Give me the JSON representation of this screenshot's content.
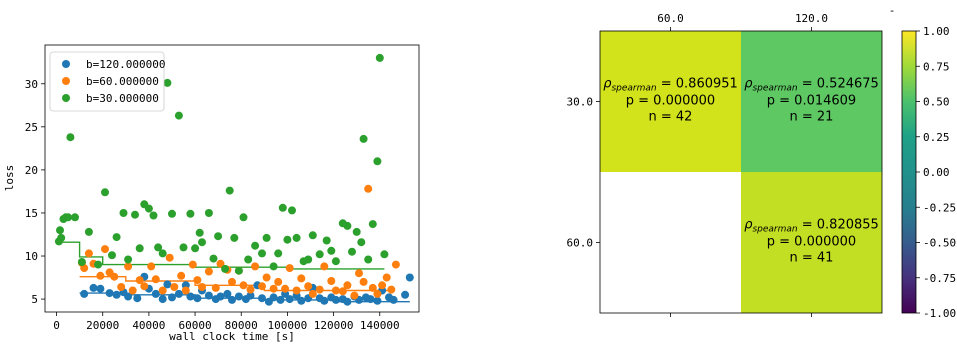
{
  "chart_data": [
    {
      "type": "scatter",
      "xlabel": "wall clock time [s]",
      "ylabel": "loss",
      "xlim": [
        -5000,
        157000
      ],
      "ylim": [
        3.5,
        34.5
      ],
      "xticks": [
        0,
        20000,
        40000,
        60000,
        80000,
        100000,
        120000,
        140000
      ],
      "yticks": [
        5,
        10,
        15,
        20,
        25,
        30
      ],
      "xtick_labels": [
        "0",
        "20000",
        "40000",
        "60000",
        "80000",
        "100000",
        "120000",
        "140000"
      ],
      "ytick_labels": [
        "5",
        "10",
        "15",
        "20",
        "25",
        "30"
      ],
      "legend_position": "upper-left",
      "series": [
        {
          "name": "b=120.000000",
          "color": "#1f77b4",
          "points": [
            [
              12000,
              5.6
            ],
            [
              16000,
              6.3
            ],
            [
              19000,
              6.2
            ],
            [
              23000,
              5.7
            ],
            [
              26000,
              5.5
            ],
            [
              29000,
              5.8
            ],
            [
              31000,
              5.3
            ],
            [
              35000,
              5.1
            ],
            [
              38000,
              7.6
            ],
            [
              40000,
              6.2
            ],
            [
              43000,
              5.6
            ],
            [
              46000,
              5.0
            ],
            [
              48000,
              6.7
            ],
            [
              50000,
              5.2
            ],
            [
              53000,
              5.6
            ],
            [
              56000,
              6.6
            ],
            [
              58000,
              5.3
            ],
            [
              61000,
              5.1
            ],
            [
              63000,
              6.0
            ],
            [
              66000,
              5.4
            ],
            [
              69000,
              5.0
            ],
            [
              71000,
              5.3
            ],
            [
              74000,
              5.6
            ],
            [
              76000,
              4.9
            ],
            [
              79000,
              5.3
            ],
            [
              82000,
              5.0
            ],
            [
              84000,
              5.4
            ],
            [
              87000,
              6.6
            ],
            [
              89000,
              5.1
            ],
            [
              92000,
              4.7
            ],
            [
              94000,
              5.2
            ],
            [
              97000,
              4.9
            ],
            [
              99000,
              5.6
            ],
            [
              101000,
              5.0
            ],
            [
              104000,
              5.4
            ],
            [
              106000,
              4.8
            ],
            [
              109000,
              5.1
            ],
            [
              111000,
              6.3
            ],
            [
              114000,
              5.1
            ],
            [
              116000,
              4.8
            ],
            [
              119000,
              5.2
            ],
            [
              121000,
              4.9
            ],
            [
              124000,
              5.0
            ],
            [
              126000,
              4.7
            ],
            [
              129000,
              5.3
            ],
            [
              131000,
              4.9
            ],
            [
              134000,
              5.2
            ],
            [
              136000,
              5.0
            ],
            [
              139000,
              4.8
            ],
            [
              141000,
              6.0
            ],
            [
              144000,
              5.2
            ],
            [
              146000,
              4.9
            ],
            [
              151000,
              5.5
            ],
            [
              153000,
              7.5
            ]
          ],
          "step": [
            [
              10000,
              5.7
            ],
            [
              30000,
              5.7
            ],
            [
              30000,
              5.5
            ],
            [
              60000,
              5.5
            ],
            [
              60000,
              5.1
            ],
            [
              90000,
              5.1
            ],
            [
              90000,
              4.9
            ],
            [
              120000,
              4.9
            ],
            [
              120000,
              4.7
            ],
            [
              153000,
              4.7
            ]
          ]
        },
        {
          "name": "b=60.000000",
          "color": "#ff7f0e",
          "points": [
            [
              11000,
              9.2
            ],
            [
              12000,
              8.6
            ],
            [
              14000,
              10.3
            ],
            [
              16000,
              9.1
            ],
            [
              19000,
              7.7
            ],
            [
              21000,
              10.8
            ],
            [
              23000,
              8.1
            ],
            [
              25000,
              7.6
            ],
            [
              28000,
              6.4
            ],
            [
              31000,
              8.8
            ],
            [
              33000,
              6.0
            ],
            [
              36000,
              7.2
            ],
            [
              38000,
              6.5
            ],
            [
              41000,
              8.8
            ],
            [
              43000,
              7.3
            ],
            [
              46000,
              6.0
            ],
            [
              49000,
              9.8
            ],
            [
              51000,
              6.4
            ],
            [
              54000,
              7.7
            ],
            [
              56000,
              6.0
            ],
            [
              59000,
              9.0
            ],
            [
              61000,
              7.2
            ],
            [
              63000,
              6.4
            ],
            [
              66000,
              8.2
            ],
            [
              69000,
              6.3
            ],
            [
              71000,
              9.1
            ],
            [
              74000,
              8.4
            ],
            [
              76000,
              7.0
            ],
            [
              79000,
              8.3
            ],
            [
              81000,
              6.6
            ],
            [
              84000,
              6.1
            ],
            [
              86000,
              8.8
            ],
            [
              89000,
              6.5
            ],
            [
              91000,
              7.5
            ],
            [
              94000,
              6.2
            ],
            [
              96000,
              7.0
            ],
            [
              99000,
              6.2
            ],
            [
              101000,
              8.6
            ],
            [
              104000,
              6.0
            ],
            [
              106000,
              7.4
            ],
            [
              109000,
              6.5
            ],
            [
              111000,
              5.6
            ],
            [
              114000,
              6.1
            ],
            [
              116000,
              8.8
            ],
            [
              119000,
              7.1
            ],
            [
              121000,
              6.0
            ],
            [
              124000,
              5.9
            ],
            [
              126000,
              6.6
            ],
            [
              129000,
              5.4
            ],
            [
              131000,
              8.0
            ],
            [
              133000,
              7.0
            ],
            [
              135000,
              17.8
            ],
            [
              137000,
              6.3
            ],
            [
              139000,
              5.6
            ],
            [
              141000,
              6.6
            ],
            [
              143000,
              7.5
            ],
            [
              145000,
              6.1
            ],
            [
              147000,
              9.0
            ]
          ],
          "step": [
            [
              10000,
              7.6
            ],
            [
              30000,
              7.6
            ],
            [
              30000,
              7.1
            ],
            [
              60000,
              7.1
            ],
            [
              60000,
              6.6
            ],
            [
              90000,
              6.6
            ],
            [
              90000,
              6.0
            ],
            [
              145000,
              6.0
            ]
          ]
        },
        {
          "name": "b=30.000000",
          "color": "#2ca02c",
          "points": [
            [
              1000,
              11.7
            ],
            [
              1500,
              13.0
            ],
            [
              2000,
              12.1
            ],
            [
              3000,
              14.3
            ],
            [
              4000,
              14.5
            ],
            [
              5000,
              14.5
            ],
            [
              6000,
              23.8
            ],
            [
              8000,
              14.5
            ],
            [
              11000,
              9.3
            ],
            [
              14000,
              12.8
            ],
            [
              18000,
              9.0
            ],
            [
              21000,
              17.4
            ],
            [
              24000,
              10.1
            ],
            [
              26000,
              12.2
            ],
            [
              29000,
              15.0
            ],
            [
              31000,
              9.6
            ],
            [
              34000,
              14.8
            ],
            [
              36000,
              10.9
            ],
            [
              38000,
              16.0
            ],
            [
              40000,
              15.5
            ],
            [
              42000,
              14.7
            ],
            [
              44000,
              11.0
            ],
            [
              46000,
              10.3
            ],
            [
              48000,
              30.1
            ],
            [
              50000,
              14.9
            ],
            [
              53000,
              26.3
            ],
            [
              55000,
              11.0
            ],
            [
              58000,
              14.9
            ],
            [
              60000,
              10.9
            ],
            [
              62000,
              12.7
            ],
            [
              63000,
              11.6
            ],
            [
              66000,
              15.0
            ],
            [
              68000,
              9.7
            ],
            [
              70000,
              12.3
            ],
            [
              73000,
              8.5
            ],
            [
              75000,
              17.6
            ],
            [
              77000,
              12.1
            ],
            [
              79000,
              8.3
            ],
            [
              81000,
              14.5
            ],
            [
              83000,
              9.6
            ],
            [
              86000,
              11.2
            ],
            [
              89000,
              10.3
            ],
            [
              91000,
              12.1
            ],
            [
              94000,
              8.8
            ],
            [
              96000,
              10.3
            ],
            [
              98000,
              15.6
            ],
            [
              100000,
              11.9
            ],
            [
              102000,
              15.3
            ],
            [
              104000,
              12.1
            ],
            [
              107000,
              9.4
            ],
            [
              109000,
              9.6
            ],
            [
              111000,
              12.4
            ],
            [
              114000,
              10.2
            ],
            [
              117000,
              11.8
            ],
            [
              119000,
              10.6
            ],
            [
              121000,
              9.4
            ],
            [
              124000,
              13.8
            ],
            [
              126000,
              13.5
            ],
            [
              128000,
              10.5
            ],
            [
              130000,
              12.8
            ],
            [
              132000,
              11.6
            ],
            [
              133000,
              23.6
            ],
            [
              135000,
              9.6
            ],
            [
              137000,
              13.7
            ],
            [
              139000,
              21.0
            ],
            [
              140000,
              33.0
            ],
            [
              142000,
              10.2
            ]
          ],
          "step": [
            [
              0,
              11.6
            ],
            [
              10000,
              11.6
            ],
            [
              10000,
              9.9
            ],
            [
              20000,
              9.9
            ],
            [
              20000,
              9.0
            ],
            [
              60000,
              9.0
            ],
            [
              60000,
              8.7
            ],
            [
              100000,
              8.7
            ],
            [
              100000,
              8.5
            ],
            [
              142000,
              8.5
            ]
          ]
        }
      ]
    },
    {
      "type": "heatmap",
      "col_labels": [
        "60.0",
        "120.0"
      ],
      "row_labels": [
        "30.0",
        "60.0"
      ],
      "extra_mark": "-",
      "vmin": -1.0,
      "vmax": 1.0,
      "colorbar_ticks": [
        1.0,
        0.75,
        0.5,
        0.25,
        0.0,
        -0.25,
        -0.5,
        -0.75,
        -1.0
      ],
      "colorbar_tick_labels": [
        "1.00",
        "0.75",
        "0.50",
        "0.25",
        "0.00",
        "-0.25",
        "-0.50",
        "-0.75",
        "-1.00"
      ],
      "cells": [
        {
          "row": 0,
          "col": 0,
          "value": 0.860951,
          "color": "#d2e21b",
          "lines": [
            "0.860951",
            "p = 0.000000",
            "n = 42"
          ]
        },
        {
          "row": 0,
          "col": 1,
          "value": 0.524675,
          "color": "#5ec962",
          "lines": [
            "0.524675",
            "p = 0.014609",
            "n = 21"
          ]
        },
        {
          "row": 1,
          "col": 0,
          "value": null,
          "color": "#ffffff",
          "lines": []
        },
        {
          "row": 1,
          "col": 1,
          "value": 0.820855,
          "color": "#c2df23",
          "lines": [
            "0.820855",
            "p = 0.000000",
            "n = 41"
          ]
        }
      ],
      "rho_prefix": "ρ",
      "rho_subscript": "spearman",
      "rho_equals": " = "
    }
  ]
}
